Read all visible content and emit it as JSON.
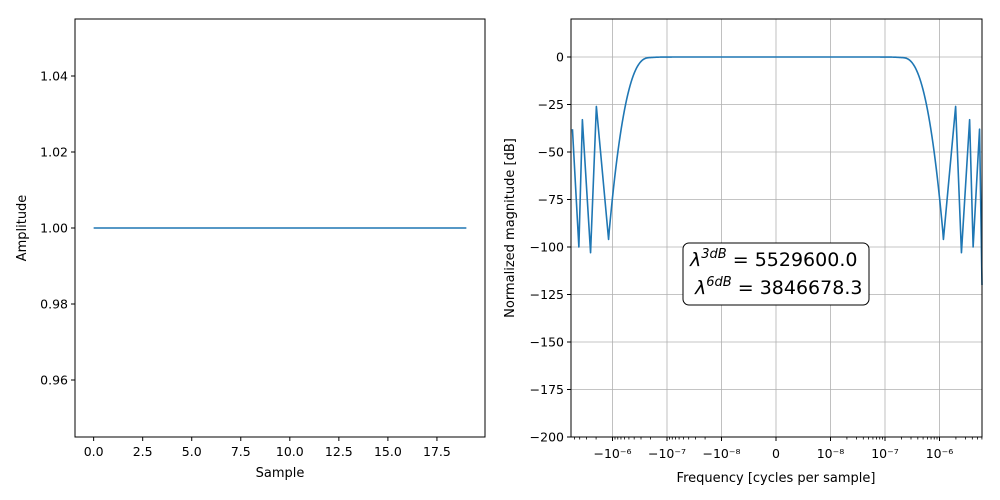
{
  "chart_data": [
    {
      "type": "line",
      "xlabel": "Sample",
      "ylabel": "Amplitude",
      "xlim": [
        -0.95,
        19.95
      ],
      "ylim": [
        0.945,
        1.055
      ],
      "grid": false,
      "x_ticks": [
        {
          "value": 0.0,
          "label": "0.0"
        },
        {
          "value": 2.5,
          "label": "2.5"
        },
        {
          "value": 5.0,
          "label": "5.0"
        },
        {
          "value": 7.5,
          "label": "7.5"
        },
        {
          "value": 10.0,
          "label": "10.0"
        },
        {
          "value": 12.5,
          "label": "12.5"
        },
        {
          "value": 15.0,
          "label": "15.0"
        },
        {
          "value": 17.5,
          "label": "17.5"
        }
      ],
      "y_ticks": [
        {
          "value": 0.96,
          "label": "0.96"
        },
        {
          "value": 0.98,
          "label": "0.98"
        },
        {
          "value": 1.0,
          "label": "1.00"
        },
        {
          "value": 1.02,
          "label": "1.02"
        },
        {
          "value": 1.04,
          "label": "1.04"
        }
      ],
      "series": [
        {
          "color": "#1f77b4",
          "x": [
            0,
            1,
            2,
            3,
            4,
            5,
            6,
            7,
            8,
            9,
            10,
            11,
            12,
            13,
            14,
            15,
            16,
            17,
            18,
            19
          ],
          "y": [
            1,
            1,
            1,
            1,
            1,
            1,
            1,
            1,
            1,
            1,
            1,
            1,
            1,
            1,
            1,
            1,
            1,
            1,
            1,
            1
          ]
        }
      ]
    },
    {
      "type": "line",
      "xlabel": "Frequency [cycles per sample]",
      "ylabel": "Normalized magnitude [dB]",
      "x_scale": "symlog",
      "ylim": [
        -200,
        20
      ],
      "grid": true,
      "x_ticks": [
        {
          "value": -1e-06,
          "label": "−10⁻⁶"
        },
        {
          "value": -1e-07,
          "label": "−10⁻⁷"
        },
        {
          "value": -1e-08,
          "label": "−10⁻⁸"
        },
        {
          "value": 0,
          "label": "0"
        },
        {
          "value": 1e-08,
          "label": "10⁻⁸"
        },
        {
          "value": 1e-07,
          "label": "10⁻⁷"
        },
        {
          "value": 1e-06,
          "label": "10⁻⁶"
        }
      ],
      "y_ticks": [
        {
          "value": 0,
          "label": "0"
        },
        {
          "value": -25,
          "label": "−25"
        },
        {
          "value": -50,
          "label": "−50"
        },
        {
          "value": -75,
          "label": "−75"
        },
        {
          "value": -100,
          "label": "−100"
        },
        {
          "value": -125,
          "label": "−125"
        },
        {
          "value": -150,
          "label": "−150"
        },
        {
          "value": -175,
          "label": "−175"
        },
        {
          "value": -200,
          "label": "−200"
        }
      ],
      "series": [
        {
          "color": "#1f77b4",
          "description": "magnitude response of rectangular window: flat at 0 dB around 0, sidelobes from about -26 dB decaying toward -50 dB with nulls near -96 to -128 dB"
        }
      ],
      "annotation": {
        "line1_base": "λ",
        "line1_sup": "3dB",
        "line1_value": " = 5529600.0",
        "line2_base": "λ",
        "line2_sup": "6dB",
        "line2_value": " = 3846678.3"
      }
    }
  ]
}
